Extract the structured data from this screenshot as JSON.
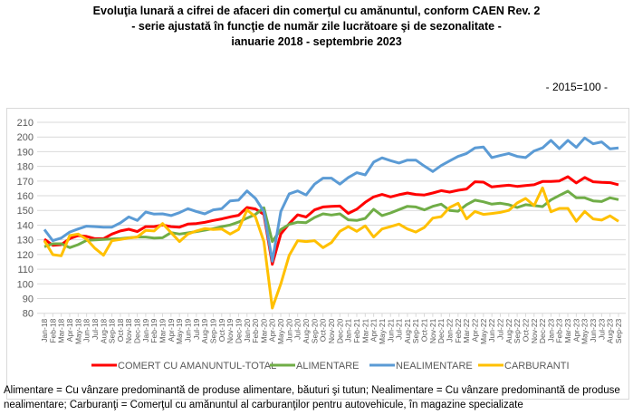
{
  "title": {
    "line1": "Evoluţia lunară a cifrei de afaceri din comerţul cu amănuntul, conform CAEN Rev. 2",
    "line2": "- serie ajustată în funcţie de număr zile lucrătoare şi de sezonalitate -",
    "line3": "ianuarie 2018 - septembrie 2023"
  },
  "base_note": "- 2015=100 -",
  "footnote": "Alimentare = Cu vânzare predominantă de produse alimentare, băuturi şi tutun; Nealimentare = Cu vânzare predominantă de produse nealimentare; Carburanţi = Comerţul cu amănuntul al carburanţilor pentru autovehicule, în magazine specializate",
  "chart_data": {
    "type": "line",
    "ylim": [
      80,
      210
    ],
    "yticks": [
      "80",
      "90",
      "100",
      "110",
      "120",
      "130",
      "140",
      "150",
      "160",
      "170",
      "180",
      "190",
      "200",
      "210"
    ],
    "grid": true,
    "legend_position": "bottom",
    "categories": [
      "Jan-18",
      "Feb-18",
      "Mar-18",
      "Apr-18",
      "May-18",
      "Jun-18",
      "Jul-18",
      "Aug-18",
      "Sep-18",
      "Oct-18",
      "Nov-18",
      "Dec-18",
      "Jan-19",
      "Feb-19",
      "Mar-19",
      "Apr-19",
      "May-19",
      "Jun-19",
      "Jul-19",
      "Aug-19",
      "Sep-19",
      "Oct-19",
      "Nov-19",
      "Dec-19",
      "Jan-20",
      "Feb-20",
      "Mar-20",
      "Apr-20",
      "May-20",
      "Jun-20",
      "Jul-20",
      "Aug-20",
      "Sep-20",
      "Oct-20",
      "Nov-20",
      "Dec-20",
      "Jan-21",
      "Feb-21",
      "Mar-21",
      "Apr-21",
      "May-21",
      "Jun-21",
      "Jul-21",
      "Aug-21",
      "Sep-21",
      "Oct-21",
      "Nov-21",
      "Dec-21",
      "Jan-22",
      "Feb-22",
      "Mar-22",
      "Apr-22",
      "May-22",
      "Jun-22",
      "Jul-22",
      "Aug-22",
      "Sep-22",
      "Oct-22",
      "Nov-22",
      "Dec-22",
      "Jan-23",
      "Feb-23",
      "Mar-23",
      "Apr-23",
      "May-23",
      "Jun-23",
      "Jul-23",
      "Aug-23",
      "Sep-23"
    ],
    "series": [
      {
        "name": "COMERT CU AMANUNTUL-TOTAL",
        "color": "#ff0000",
        "values": [
          130.4,
          126.3,
          126.7,
          130.8,
          132.9,
          132.3,
          130.8,
          130.8,
          133.9,
          136,
          137.2,
          135.6,
          139,
          139,
          140.1,
          139,
          138.6,
          140.7,
          141.1,
          141.9,
          143.2,
          144.2,
          145.6,
          146.7,
          152,
          151,
          147.3,
          113.3,
          134,
          141,
          147,
          145.5,
          150.4,
          152.4,
          152.8,
          153,
          148,
          150.8,
          155.5,
          159.2,
          160.9,
          159.2,
          160.7,
          161.9,
          160.9,
          160.5,
          161.9,
          163.5,
          162.5,
          163.7,
          164.6,
          169.5,
          169.3,
          166,
          166.6,
          167.2,
          166.4,
          167,
          167.5,
          169.7,
          169.7,
          170.1,
          173,
          168.7,
          172.4,
          169.5,
          169.1,
          168.9,
          167.5
        ]
      },
      {
        "name": "ALIMENTARE",
        "color": "#70ad47",
        "values": [
          125.3,
          127.3,
          127.3,
          124.7,
          126.7,
          129.6,
          130,
          130.2,
          130.6,
          130.8,
          131.4,
          131.9,
          131.9,
          131.2,
          131.4,
          134.9,
          133.9,
          134.7,
          135.6,
          136.6,
          137.6,
          139,
          140.1,
          142.1,
          144.8,
          147.3,
          151.8,
          128.8,
          137,
          140.5,
          142,
          141.7,
          145.2,
          147.7,
          146.9,
          147.7,
          143.6,
          143.2,
          144.6,
          150.8,
          146.5,
          148.3,
          150.6,
          152.8,
          152.4,
          150.4,
          152.8,
          154.3,
          150,
          149.5,
          153.9,
          157,
          155.9,
          154.3,
          154.9,
          153.9,
          152,
          153.9,
          153.3,
          152.6,
          157.2,
          160.2,
          163.1,
          158.6,
          158.6,
          156.5,
          156.1,
          158.6,
          157.4
        ]
      },
      {
        "name": "NEALIMENTARE",
        "color": "#5b9bd5",
        "values": [
          137,
          129.4,
          131.2,
          135.3,
          137.4,
          139.3,
          139,
          138.6,
          138.6,
          141.5,
          145.6,
          143.2,
          148.9,
          147.5,
          147.7,
          146.5,
          148.5,
          151.2,
          149.3,
          147.7,
          150.4,
          151.2,
          156.5,
          157,
          163.3,
          158.2,
          149.3,
          115.4,
          149.3,
          161.3,
          163.3,
          160.5,
          167.9,
          172,
          172,
          167.9,
          172.4,
          175.7,
          174.2,
          182.9,
          185.8,
          183.9,
          182.3,
          184.3,
          184.3,
          180.2,
          176.5,
          180.6,
          183.7,
          186.8,
          188.8,
          192.6,
          193.2,
          186,
          187.4,
          188.8,
          186.8,
          186,
          190.5,
          192.6,
          197.7,
          192.1,
          197.7,
          193,
          199.3,
          195.4,
          196.7,
          191.9,
          192.6
        ]
      },
      {
        "name": "CARBURANTI",
        "color": "#ffc000",
        "values": [
          129.4,
          119.9,
          119.1,
          132.9,
          133.9,
          130.4,
          124.2,
          119.5,
          129.4,
          130.2,
          131.2,
          131.9,
          136.4,
          136,
          141.1,
          134.9,
          128.8,
          133.9,
          136,
          137.6,
          137,
          137.4,
          133.9,
          137,
          150.4,
          145.6,
          128.8,
          83.5,
          100,
          119.5,
          129.4,
          128.8,
          129.4,
          124.7,
          128.1,
          135.8,
          139,
          135.8,
          139.5,
          131.9,
          137.4,
          139,
          140.7,
          137.4,
          135.3,
          138.4,
          144.8,
          145.8,
          152,
          154.9,
          144.2,
          149.3,
          147.3,
          147.9,
          148.7,
          150,
          155.1,
          158.2,
          153.3,
          165.4,
          149.1,
          151.4,
          151.4,
          142.6,
          149.3,
          144.2,
          143.4,
          146.3,
          142.6
        ]
      }
    ]
  }
}
